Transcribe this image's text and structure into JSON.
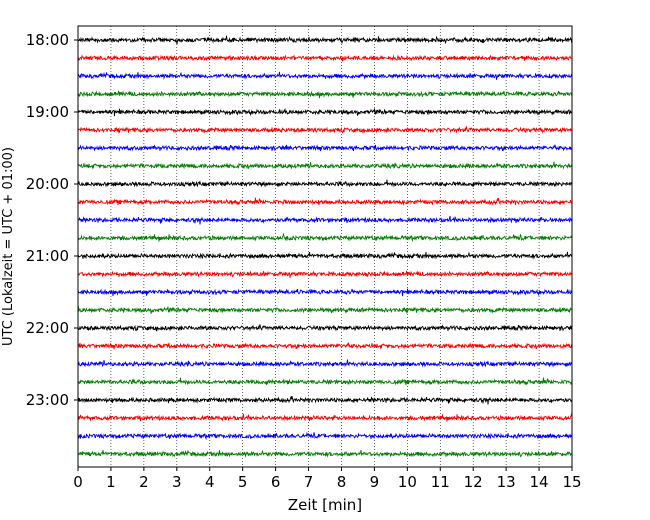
{
  "chart_data": {
    "type": "line",
    "xlabel": "Zeit  [min]",
    "ylabel": "UTC (Lokalzeit = UTC + 01:00)",
    "xlim": [
      0,
      15
    ],
    "x_ticks": [
      0,
      1,
      2,
      3,
      4,
      5,
      6,
      7,
      8,
      9,
      10,
      11,
      12,
      13,
      14,
      15
    ],
    "y_ticks": [
      "18:00",
      "19:00",
      "20:00",
      "21:00",
      "22:00",
      "23:00"
    ],
    "grid": {
      "x": true,
      "y": false
    },
    "trace_interval_min": 15,
    "time_range": [
      "18:00",
      "23:45"
    ],
    "trace_colors": [
      "#000000",
      "#ff0000",
      "#0000ff",
      "#008000"
    ],
    "trace_starts": [
      "18:00",
      "18:15",
      "18:30",
      "18:45",
      "19:00",
      "19:15",
      "19:30",
      "19:45",
      "20:00",
      "20:15",
      "20:30",
      "20:45",
      "21:00",
      "21:15",
      "21:30",
      "21:45",
      "22:00",
      "22:15",
      "22:30",
      "22:45",
      "23:00",
      "23:15",
      "23:30",
      "23:45"
    ]
  }
}
